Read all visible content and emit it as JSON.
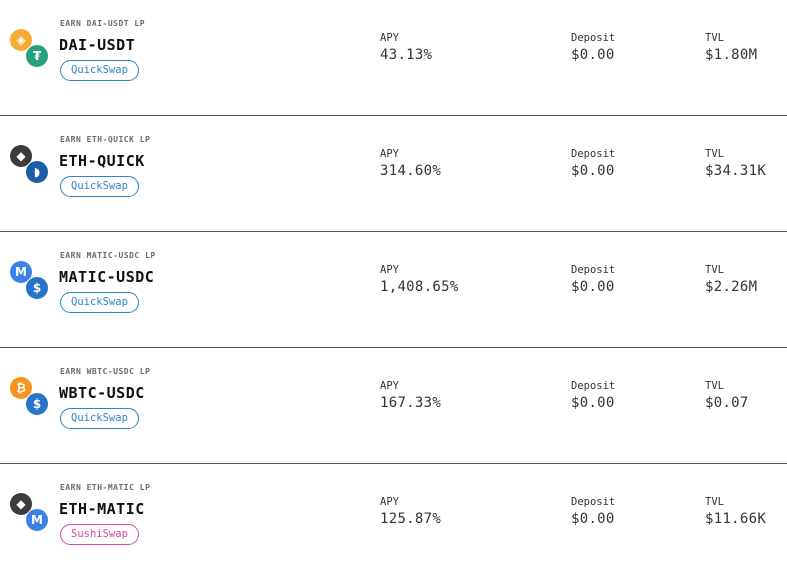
{
  "labels": {
    "apy": "APY",
    "deposit": "Deposit",
    "tvl": "TVL"
  },
  "pools": [
    {
      "earn": "EARN DAI-USDT LP",
      "pair": "DAI-USDT",
      "dex": "QuickSwap",
      "dex_color": "#2d86c4",
      "tokens": [
        {
          "icon": "dai-icon",
          "glyph": "◈",
          "color": "#f5ac37"
        },
        {
          "icon": "usdt-icon",
          "glyph": "₮",
          "color": "#26a17b"
        }
      ],
      "apy": "43.13%",
      "deposit": "$0.00",
      "tvl": "$1.80M"
    },
    {
      "earn": "EARN ETH-QUICK LP",
      "pair": "ETH-QUICK",
      "dex": "QuickSwap",
      "dex_color": "#2d86c4",
      "tokens": [
        {
          "icon": "eth-icon",
          "glyph": "◆",
          "color": "#3c3c3d"
        },
        {
          "icon": "quick-icon",
          "glyph": "◗",
          "color": "#1a5ea8"
        }
      ],
      "apy": "314.60%",
      "deposit": "$0.00",
      "tvl": "$34.31K"
    },
    {
      "earn": "EARN MATIC-USDC LP",
      "pair": "MATIC-USDC",
      "dex": "QuickSwap",
      "dex_color": "#2d86c4",
      "tokens": [
        {
          "icon": "matic-icon",
          "glyph": "M",
          "color": "#3b82e6"
        },
        {
          "icon": "usdc-icon",
          "glyph": "$",
          "color": "#2775ca"
        }
      ],
      "apy": "1,408.65%",
      "deposit": "$0.00",
      "tvl": "$2.26M"
    },
    {
      "earn": "EARN WBTC-USDC LP",
      "pair": "WBTC-USDC",
      "dex": "QuickSwap",
      "dex_color": "#2d86c4",
      "tokens": [
        {
          "icon": "wbtc-icon",
          "glyph": "₿",
          "color": "#f7931a"
        },
        {
          "icon": "usdc-icon",
          "glyph": "$",
          "color": "#2775ca"
        }
      ],
      "apy": "167.33%",
      "deposit": "$0.00",
      "tvl": "$0.07"
    },
    {
      "earn": "EARN ETH-MATIC LP",
      "pair": "ETH-MATIC",
      "dex": "SushiSwap",
      "dex_color": "#d44aa8",
      "tokens": [
        {
          "icon": "eth-icon",
          "glyph": "◆",
          "color": "#3c3c3d"
        },
        {
          "icon": "matic-icon",
          "glyph": "M",
          "color": "#3b82e6"
        }
      ],
      "apy": "125.87%",
      "deposit": "$0.00",
      "tvl": "$11.66K"
    }
  ]
}
